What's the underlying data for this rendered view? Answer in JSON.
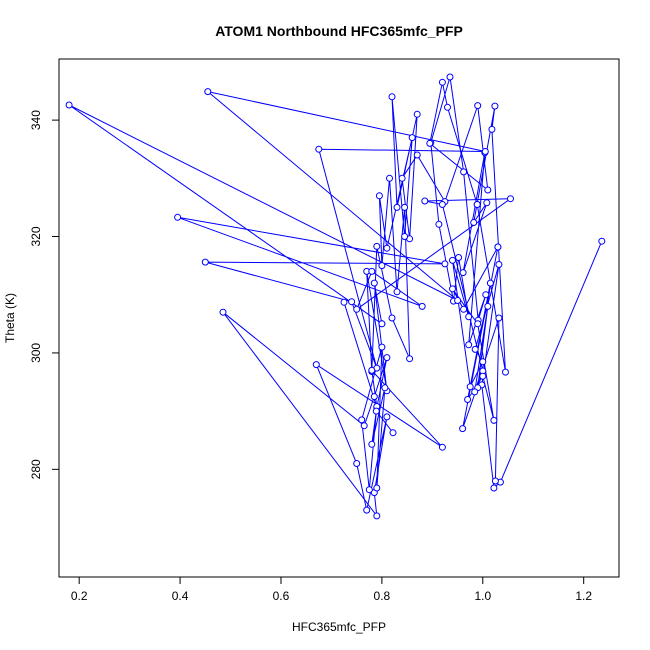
{
  "chart_data": {
    "type": "line",
    "title": "ATOM1 Northbound HFC365mfc_PFP",
    "xlabel": "HFC365mfc_PFP",
    "ylabel": "Theta (K)",
    "xlim": [
      0.16,
      1.27
    ],
    "ylim": [
      261.5,
      350.5
    ],
    "xticks": [
      0.2,
      0.4,
      0.6,
      0.8,
      1.0,
      1.2
    ],
    "xtick_labels": [
      "0.2",
      "0.4",
      "0.6",
      "0.8",
      "1.0",
      "1.2"
    ],
    "yticks": [
      280,
      300,
      320,
      340
    ],
    "ytick_labels": [
      "280",
      "300",
      "320",
      "340"
    ],
    "grid": false,
    "series_color": "#0000ff",
    "series": [
      {
        "x": [
          1.236,
          1.035,
          1.022,
          0.998,
          1.032,
          0.985,
          1.0,
          0.975,
          0.94,
          0.972,
          0.952,
          0.942,
          0.913,
          0.897,
          0.935,
          0.962,
          0.991,
          1.006,
          0.972,
          1.004,
          0.961,
          1.008,
          0.982,
          1.024,
          1.018,
          1.045,
          0.989
        ],
        "y": [
          319.2,
          277.8,
          276.8,
          294.5,
          315.2,
          300.6,
          298.5,
          294.2,
          315.9,
          306.2,
          316.4,
          308.9,
          322.1,
          336.1,
          347.4,
          331.1,
          305.6,
          310.0,
          301.4,
          334.4,
          313.8,
          325.8,
          322.4,
          342.4,
          338.4,
          296.7,
          325.5
        ]
      },
      {
        "x": [
          0.989,
          0.93,
          0.92,
          0.895,
          1.01,
          0.99,
          0.925,
          0.87,
          0.84,
          0.855,
          0.87,
          0.83,
          0.82,
          0.845,
          0.86,
          0.81,
          0.795,
          0.8,
          0.815,
          0.83,
          0.845,
          0.855,
          0.82,
          0.79,
          0.78,
          0.77,
          0.81,
          0.785,
          0.8
        ],
        "y": [
          325.5,
          342.2,
          346.5,
          336.0,
          328.0,
          342.5,
          326.0,
          334.0,
          330.0,
          319.6,
          341.0,
          325.0,
          344.0,
          320.0,
          337.0,
          318.0,
          327.0,
          315.0,
          330.0,
          310.5,
          325.0,
          299.0,
          306.0,
          318.3,
          296.8,
          314.0,
          293.5,
          312.0,
          305.0
        ]
      },
      {
        "x": [
          0.8,
          0.18,
          0.95,
          0.455,
          1.005,
          0.675,
          0.79,
          0.74,
          0.45,
          0.925,
          0.395,
          0.88,
          0.78,
          0.75,
          1.055,
          0.885,
          0.92,
          1.0,
          0.96,
          1.03
        ],
        "y": [
          305.0,
          342.6,
          309.0,
          344.9,
          334.6,
          335.0,
          297.4,
          308.8,
          315.6,
          315.3,
          323.3,
          308.0,
          314.0,
          307.5,
          326.5,
          326.1,
          325.5,
          296.9,
          287.0,
          318.2
        ]
      },
      {
        "x": [
          1.03,
          0.962,
          0.94,
          0.99,
          1.022,
          1.0,
          0.97,
          1.015,
          0.99,
          1.01,
          0.984,
          1.032,
          1.025
        ],
        "y": [
          318.2,
          307.5,
          311.0,
          305.0,
          288.4,
          296.0,
          292.0,
          312.0,
          294.0,
          308.0,
          293.3,
          306.0,
          278.0
        ]
      },
      {
        "x": [
          0.725,
          0.79,
          0.81,
          0.785,
          0.765,
          0.485,
          0.79,
          0.785,
          0.81,
          0.77,
          0.75,
          0.67,
          0.92,
          0.78,
          0.79,
          0.775,
          0.76,
          0.8,
          0.79,
          0.806,
          0.78,
          0.789,
          0.822
        ],
        "y": [
          308.7,
          290.6,
          299.2,
          292.5,
          287.5,
          307.0,
          272.0,
          276.0,
          289.0,
          273.0,
          281.0,
          298.0,
          283.8,
          297.0,
          290.8,
          276.5,
          288.5,
          301.0,
          276.8,
          294.0,
          284.3,
          290.0,
          286.3
        ]
      }
    ]
  }
}
